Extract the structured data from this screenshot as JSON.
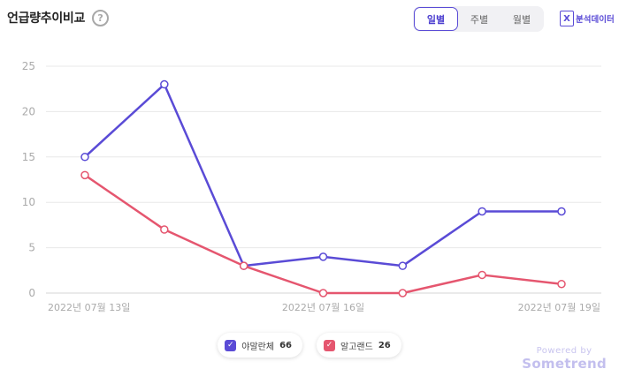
{
  "header": {
    "title": "언급량추이비교",
    "help_glyph": "?",
    "tabs": [
      {
        "label": "일별",
        "active": true
      },
      {
        "label": "주별",
        "active": false
      },
      {
        "label": "월별",
        "active": false
      }
    ],
    "export_label": "분석데이터",
    "export_glyph": "X"
  },
  "chart_data": {
    "type": "line",
    "title": "",
    "xlabel": "",
    "ylabel": "",
    "x": [
      "2022-07-13",
      "2022-07-14",
      "2022-07-15",
      "2022-07-16",
      "2022-07-17",
      "2022-07-18",
      "2022-07-19"
    ],
    "x_tick_labels": [
      "2022년 07월 13일",
      "2022년 07월 16일",
      "2022년 07월 19일"
    ],
    "x_tick_indices": [
      0,
      3,
      6
    ],
    "y_ticks": [
      0,
      5,
      10,
      15,
      20,
      25
    ],
    "ylim": [
      0,
      25
    ],
    "grid": true,
    "legend_position": "bottom-center",
    "series": [
      {
        "name": "야말란체",
        "color": "#5a4bd6",
        "values": [
          15,
          23,
          3,
          4,
          3,
          9,
          9
        ]
      },
      {
        "name": "알고랜드",
        "color": "#e5566f",
        "values": [
          13,
          7,
          3,
          0,
          0,
          2,
          1
        ]
      }
    ]
  },
  "legend": [
    {
      "name": "야말란체",
      "count": "66",
      "color": "#5a4bd6",
      "check": "✓"
    },
    {
      "name": "알고랜드",
      "count": "26",
      "color": "#e5566f",
      "check": "✓"
    }
  ],
  "footer": {
    "powered_by": "Powered by",
    "brand": "Sometrend"
  }
}
